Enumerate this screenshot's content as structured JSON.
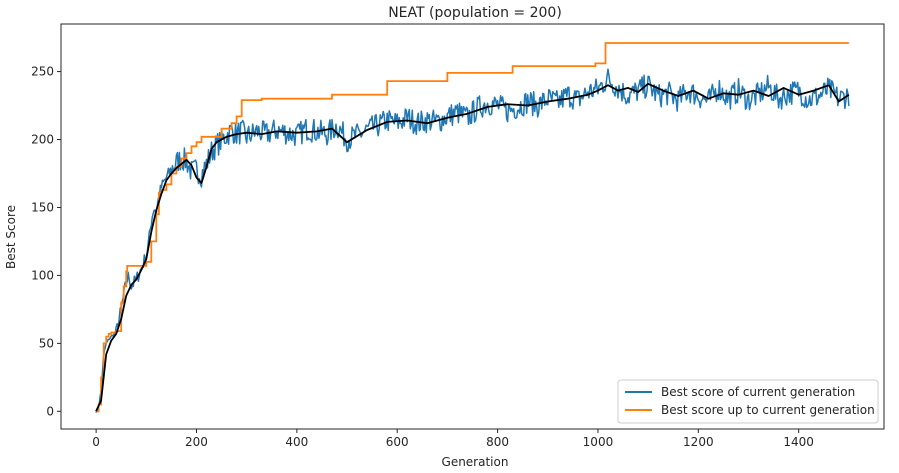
{
  "chart_data": {
    "type": "line",
    "title": "NEAT (population = 200)",
    "xlabel": "Generation",
    "ylabel": "Best Score",
    "xlim": [
      -70,
      1570
    ],
    "ylim": [
      -13,
      285
    ],
    "xticks": [
      0,
      200,
      400,
      600,
      800,
      1000,
      1200,
      1400
    ],
    "yticks": [
      0,
      50,
      100,
      150,
      200,
      250
    ],
    "grid": false,
    "legend_position": "lower-right",
    "colors": {
      "current": "#1f77b4",
      "best_so_far": "#ff7f0e",
      "smoothed": "#000000",
      "axis": "#262626"
    },
    "series": [
      {
        "key": "current",
        "name": "Best score of current generation",
        "x": [
          0,
          5,
          10,
          15,
          20,
          25,
          30,
          40,
          50,
          55,
          60,
          65,
          70,
          80,
          90,
          100,
          105,
          110,
          115,
          120,
          125,
          130,
          140,
          150,
          160,
          170,
          180,
          190,
          200,
          210,
          220,
          230,
          240,
          250,
          260,
          270,
          280,
          290,
          300,
          320,
          340,
          360,
          380,
          400,
          420,
          440,
          460,
          480,
          500,
          520,
          540,
          560,
          580,
          600,
          620,
          640,
          660,
          680,
          700,
          720,
          740,
          760,
          780,
          800,
          820,
          840,
          860,
          880,
          900,
          920,
          940,
          960,
          980,
          1000,
          1020,
          1040,
          1060,
          1080,
          1100,
          1120,
          1140,
          1160,
          1180,
          1200,
          1220,
          1240,
          1260,
          1280,
          1300,
          1320,
          1340,
          1360,
          1380,
          1400,
          1420,
          1440,
          1460,
          1480,
          1500
        ],
        "y": [
          0,
          3,
          15,
          42,
          50,
          53,
          55,
          58,
          75,
          85,
          95,
          100,
          92,
          97,
          105,
          115,
          125,
          140,
          150,
          147,
          158,
          165,
          172,
          178,
          183,
          186,
          184,
          176,
          178,
          174,
          182,
          191,
          196,
          199,
          203,
          207,
          204,
          206,
          202,
          206,
          204,
          207,
          205,
          203,
          208,
          206,
          204,
          210,
          200,
          203,
          207,
          210,
          214,
          212,
          216,
          212,
          214,
          213,
          217,
          220,
          216,
          223,
          227,
          225,
          221,
          224,
          228,
          225,
          230,
          227,
          233,
          229,
          235,
          237,
          245,
          238,
          232,
          236,
          240,
          232,
          234,
          229,
          236,
          232,
          228,
          238,
          230,
          236,
          229,
          233,
          239,
          230,
          234,
          236,
          229,
          232,
          237,
          230,
          233
        ]
      },
      {
        "key": "best_so_far",
        "name": "Best score up to current generation",
        "x": [
          0,
          5,
          10,
          15,
          20,
          25,
          30,
          40,
          50,
          55,
          60,
          62,
          100,
          110,
          120,
          125,
          130,
          140,
          150,
          160,
          170,
          180,
          190,
          200,
          210,
          250,
          270,
          280,
          290,
          330,
          470,
          580,
          700,
          830,
          995,
          1015,
          1500
        ],
        "y": [
          0,
          5,
          25,
          50,
          55,
          57,
          58,
          59,
          80,
          92,
          103,
          107,
          110,
          125,
          145,
          161,
          163,
          167,
          175,
          180,
          186,
          190,
          195,
          198,
          202,
          208,
          212,
          217,
          229,
          230,
          233,
          243,
          249,
          254,
          256,
          271,
          271
        ]
      },
      {
        "key": "smoothed",
        "x": [
          0,
          10,
          20,
          30,
          40,
          50,
          60,
          70,
          80,
          90,
          100,
          110,
          120,
          130,
          140,
          150,
          160,
          170,
          180,
          190,
          200,
          210,
          220,
          230,
          240,
          260,
          280,
          300,
          330,
          360,
          400,
          440,
          470,
          500,
          540,
          580,
          620,
          660,
          700,
          740,
          780,
          820,
          860,
          900,
          940,
          980,
          1000,
          1020,
          1040,
          1060,
          1080,
          1100,
          1130,
          1160,
          1190,
          1220,
          1250,
          1280,
          1310,
          1340,
          1370,
          1400,
          1430,
          1460,
          1480,
          1500
        ],
        "y": [
          0,
          8,
          42,
          52,
          57,
          68,
          85,
          93,
          97,
          104,
          112,
          132,
          148,
          160,
          170,
          175,
          179,
          182,
          185,
          181,
          172,
          168,
          180,
          193,
          198,
          202,
          204,
          205,
          204,
          206,
          205,
          206,
          208,
          198,
          207,
          213,
          214,
          212,
          216,
          219,
          224,
          226,
          225,
          228,
          230,
          233,
          236,
          240,
          236,
          238,
          235,
          241,
          236,
          232,
          236,
          230,
          234,
          233,
          236,
          232,
          238,
          233,
          236,
          240,
          228,
          233
        ]
      }
    ]
  }
}
